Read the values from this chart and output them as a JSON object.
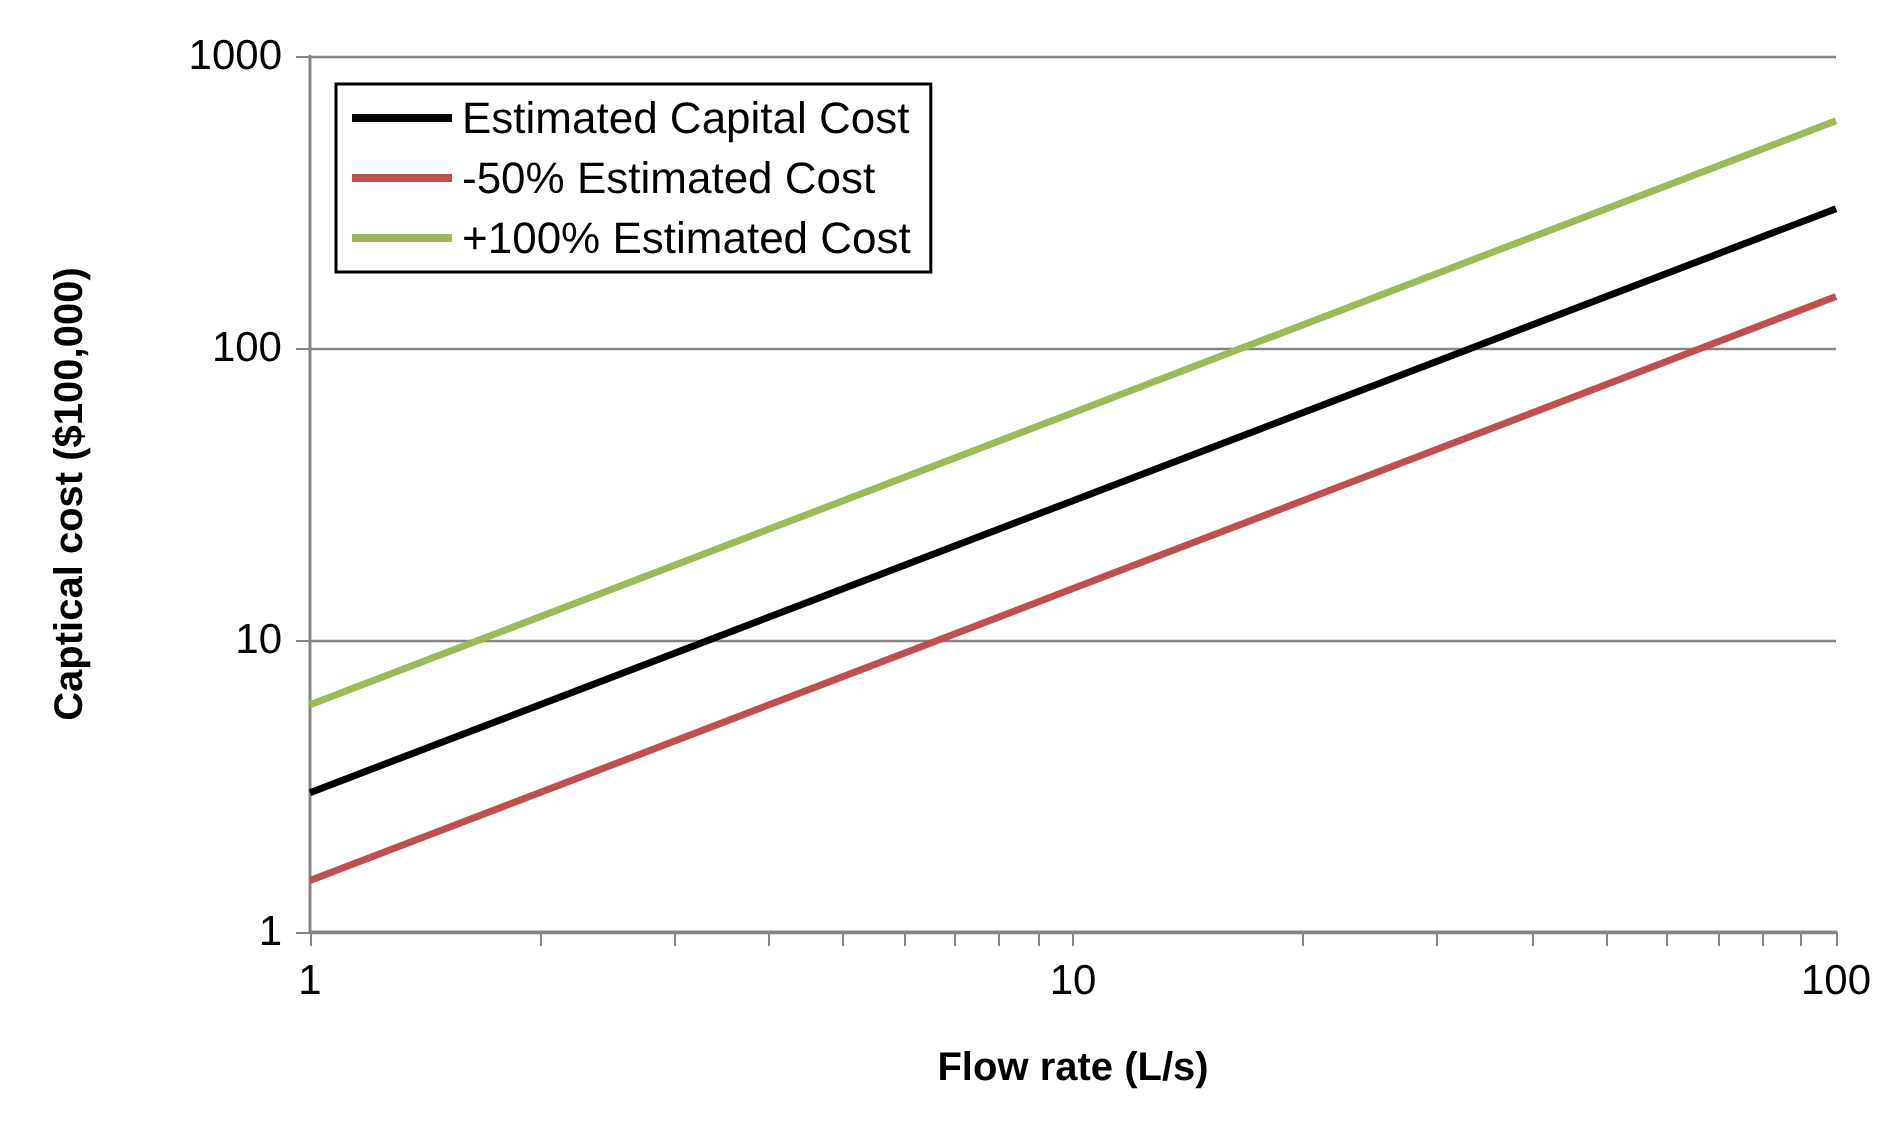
{
  "chart_data": {
    "type": "line",
    "xlabel": "Flow rate (L/s)",
    "ylabel": "Captical cost ($100,000)",
    "x": [
      1,
      10,
      100
    ],
    "series": [
      {
        "name": "Estimated Capital Cost",
        "color": "#000000",
        "values": [
          3,
          30,
          300
        ]
      },
      {
        "name": "-50% Estimated Cost",
        "color": "#c0504d",
        "values": [
          1.5,
          15,
          150
        ]
      },
      {
        "name": "+100% Estimated Cost",
        "color": "#9bbb59",
        "values": [
          6,
          60,
          600
        ]
      }
    ],
    "log": "xy",
    "xlim": [
      1,
      100
    ],
    "ylim": [
      1,
      1000
    ],
    "xticks": [
      1,
      {
        "value": 2,
        "label": null
      },
      {
        "value": 3,
        "label": null
      },
      {
        "value": 4,
        "label": null
      },
      {
        "value": 5,
        "label": null
      },
      {
        "value": 6,
        "label": null
      },
      {
        "value": 7,
        "label": null
      },
      {
        "value": 8,
        "label": null
      },
      {
        "value": 9,
        "label": null
      },
      10,
      {
        "value": 20,
        "label": null
      },
      {
        "value": 30,
        "label": null
      },
      {
        "value": 40,
        "label": null
      },
      {
        "value": 50,
        "label": null
      },
      {
        "value": 60,
        "label": null
      },
      {
        "value": 70,
        "label": null
      },
      {
        "value": 80,
        "label": null
      },
      {
        "value": 90,
        "label": null
      },
      100
    ],
    "yticks": [
      1,
      10,
      100,
      1000
    ],
    "grid": "y",
    "legend": "top left",
    "marker": "none",
    "line_style": "solid"
  }
}
